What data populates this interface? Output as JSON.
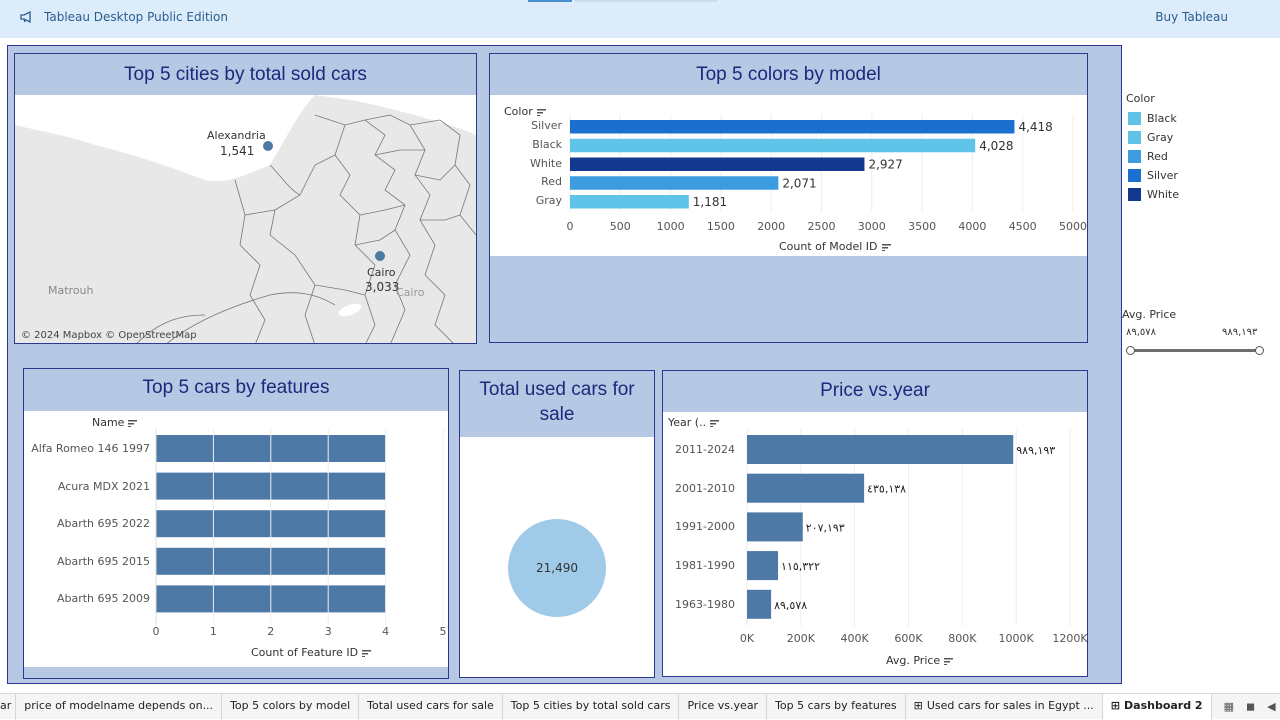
{
  "app": {
    "title": "Tableau Desktop Public Edition",
    "buy": "Buy Tableau"
  },
  "colors": {
    "Black": "#5fc4e8",
    "Gray": "#5fc4e8",
    "Red": "#3b9de0",
    "Silver": "#1a6fcf",
    "White": "#12388f",
    "default_bar": "#4e79a7",
    "circle": "#9fcae8"
  },
  "map": {
    "title": "Top 5 cities by total sold cars",
    "cities": [
      {
        "name": "Alexandria",
        "value": "1,541"
      },
      {
        "name": "Cairo",
        "value": "3,033"
      }
    ],
    "labels": {
      "matrouh": "Matrouh",
      "cairo_region": "Cairo"
    },
    "attribution": "© 2024 Mapbox © OpenStreetMap"
  },
  "colors_chart": {
    "title": "Top 5 colors by model",
    "chart_data": {
      "type": "bar",
      "orientation": "horizontal",
      "categories": [
        "Silver",
        "Black",
        "White",
        "Red",
        "Gray"
      ],
      "values": [
        4418,
        4028,
        2927,
        2071,
        1181
      ],
      "value_labels": [
        "4,418",
        "4,028",
        "2,927",
        "2,071",
        "1,181"
      ],
      "xlim": [
        0,
        5000
      ],
      "xticks": [
        0,
        500,
        1000,
        1500,
        2000,
        2500,
        3000,
        3500,
        4000,
        4500,
        5000
      ],
      "xlabel": "Count of Model ID",
      "ylabel": "Color"
    }
  },
  "features_chart": {
    "title": "Top 5 cars by features",
    "chart_data": {
      "type": "bar",
      "orientation": "horizontal",
      "categories": [
        "Alfa Romeo 146 1997",
        "Acura MDX 2021",
        "Abarth 695 2022",
        "Abarth 695 2015",
        "Abarth 695 2009"
      ],
      "values": [
        4,
        4,
        4,
        4,
        4
      ],
      "xlim": [
        0,
        5
      ],
      "xticks": [
        0,
        1,
        2,
        3,
        4,
        5
      ],
      "xlabel": "Count of Feature ID",
      "ylabel": "Name"
    }
  },
  "total": {
    "title": "Total used cars for sale",
    "value": "21,490"
  },
  "price_chart": {
    "title": "Price vs.year",
    "chart_data": {
      "type": "bar",
      "orientation": "horizontal",
      "categories": [
        "2011-2024",
        "2001-2010",
        "1991-2000",
        "1981-1990",
        "1963-1980"
      ],
      "values": [
        989193,
        435138,
        207193,
        115322,
        89578
      ],
      "value_labels": [
        "٩٨٩,١٩٣",
        "٤٣٥,١٣٨",
        "٢٠٧,١٩٣",
        "١١٥,٣٢٢",
        "٨٩,٥٧٨"
      ],
      "xlim": [
        0,
        1200000
      ],
      "xticks": [
        "0K",
        "200K",
        "400K",
        "600K",
        "800K",
        "1000K",
        "1200K"
      ],
      "xlabel": "Avg. Price",
      "ylabel": "Year (.."
    }
  },
  "legend": {
    "title": "Color",
    "items": [
      "Black",
      "Gray",
      "Red",
      "Silver",
      "White"
    ]
  },
  "price_filter": {
    "title": "Avg. Price",
    "min": "٨٩,٥٧٨",
    "max": "٩٨٩,١٩٣"
  },
  "sheet_tabs": [
    "ar",
    "price of modelname depends on...",
    "Top 5 colors by model",
    "Total used cars for sale",
    "Top 5 cities by total sold cars",
    "Price vs.year",
    "Top 5 cars by features",
    "Used cars for sales in Egypt ...",
    "Dashboard 2"
  ]
}
